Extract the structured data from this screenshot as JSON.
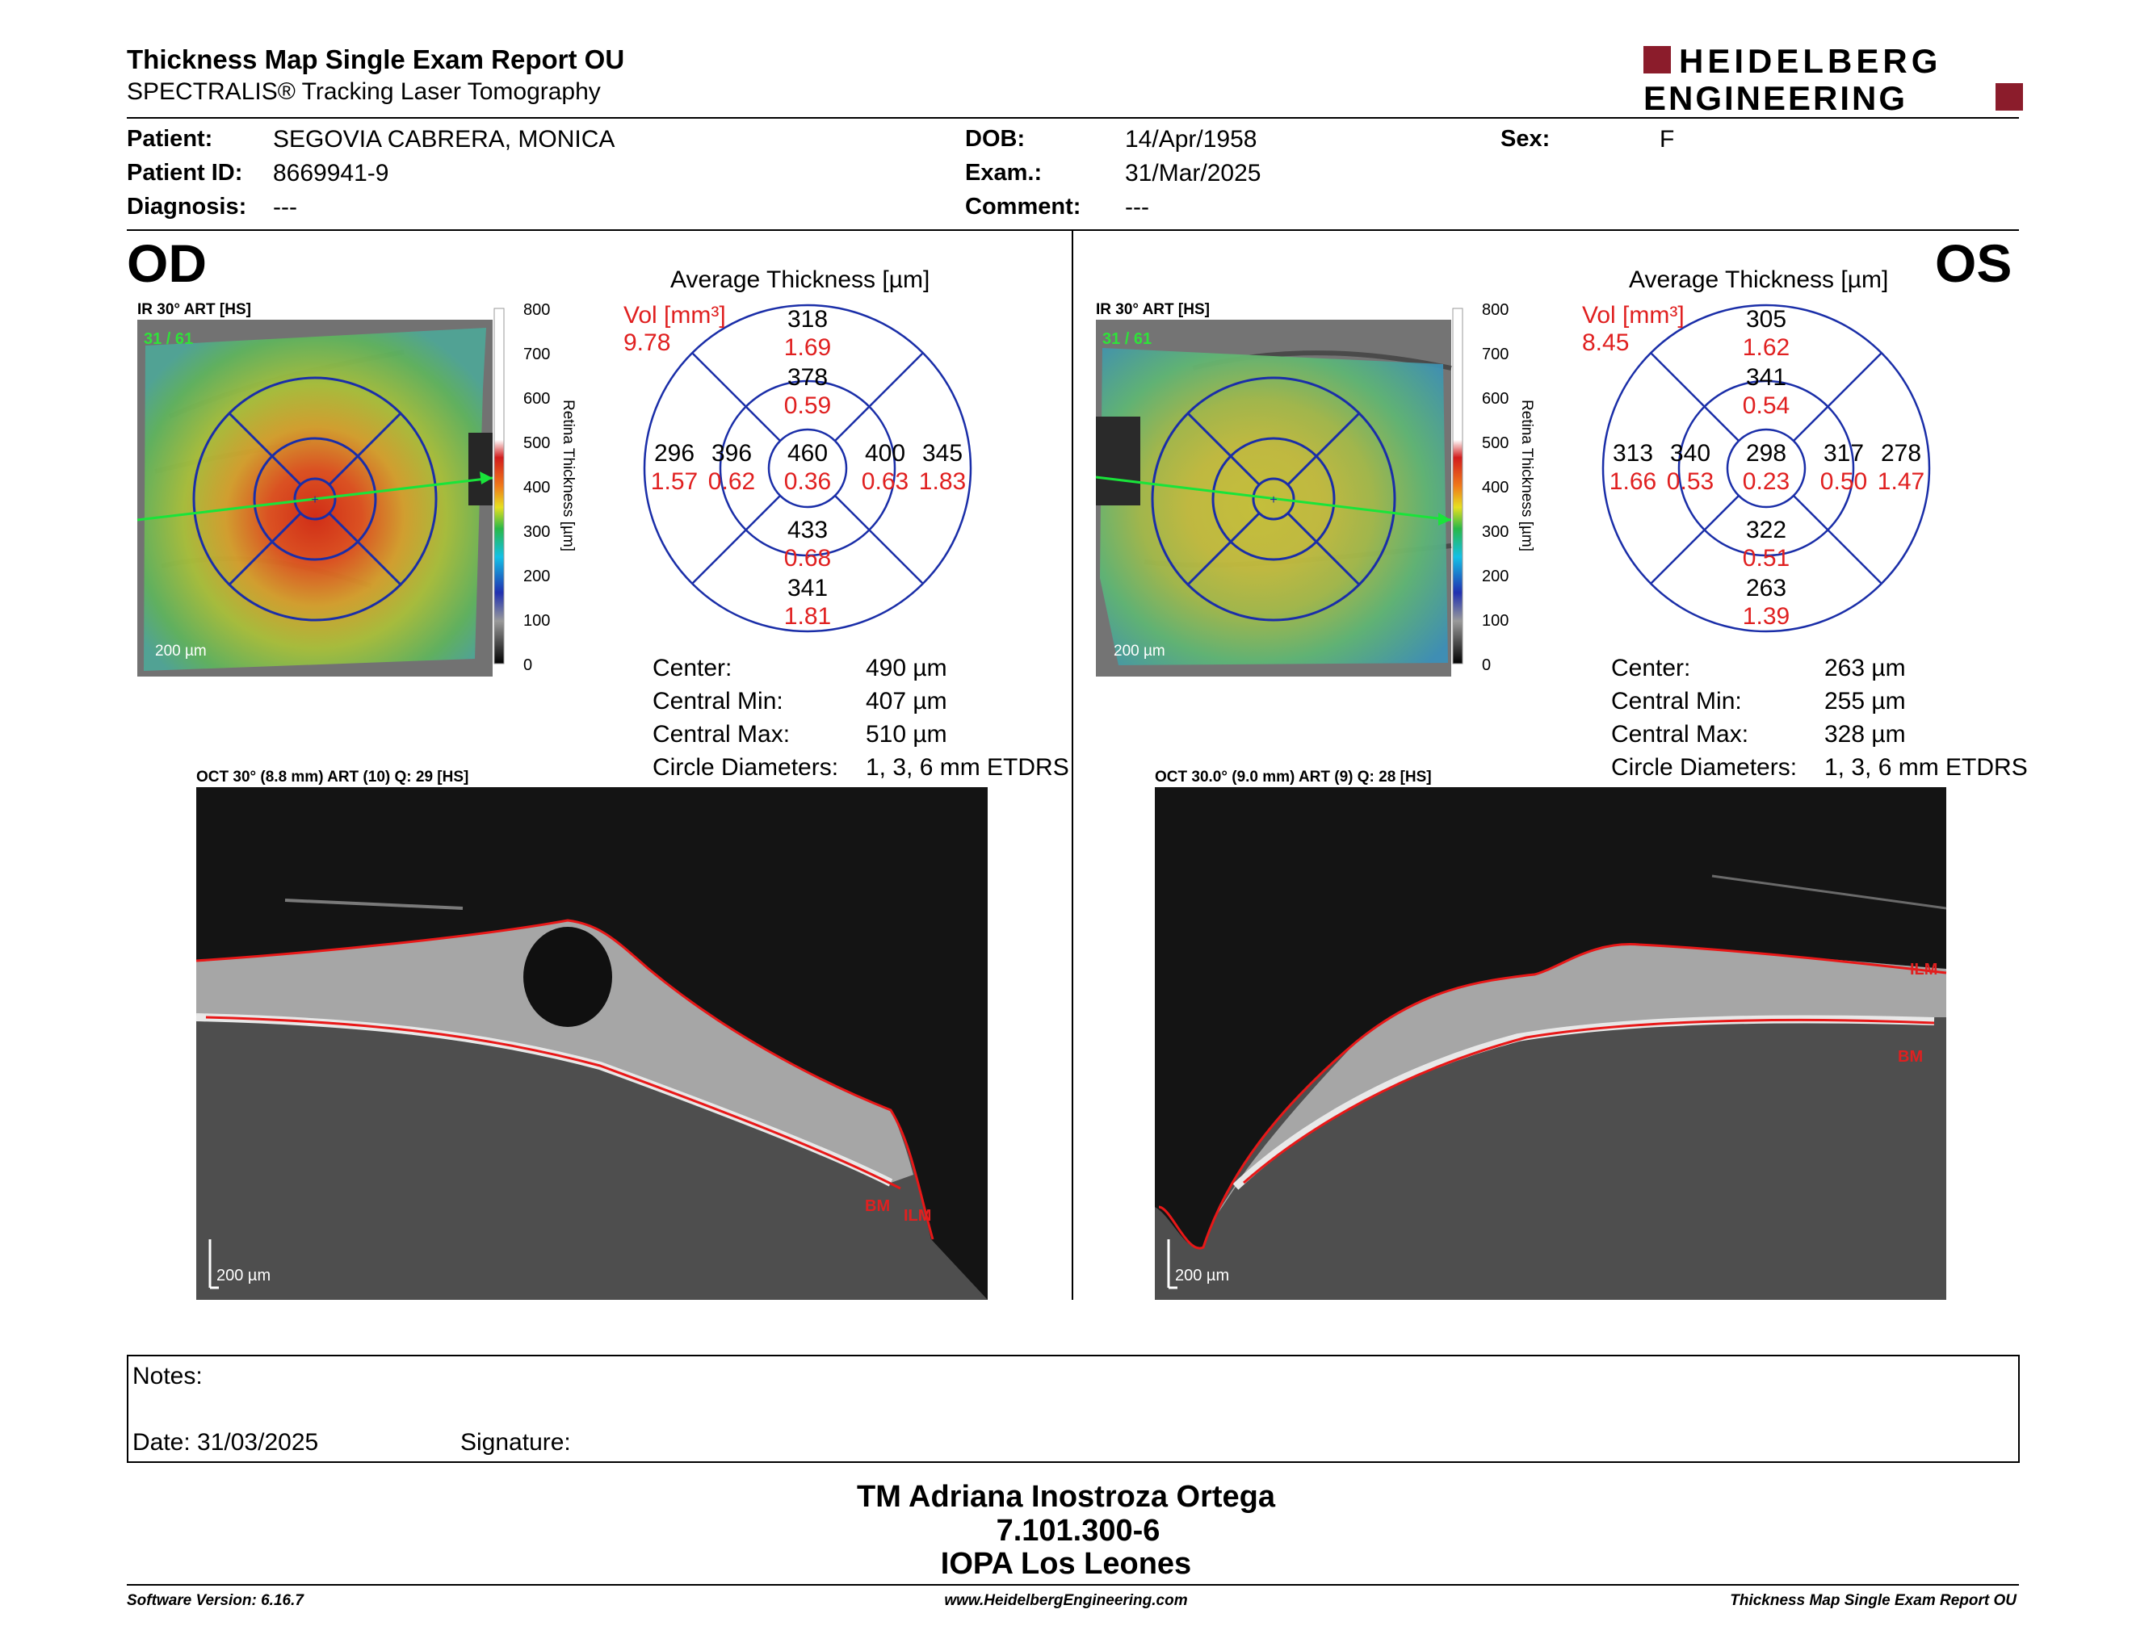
{
  "report": {
    "title": "Thickness Map Single Exam Report OU",
    "subtitle": "SPECTRALIS® Tracking Laser Tomography",
    "logo_line1": "HEIDELBERG",
    "logo_line2": "ENGINEERING",
    "brand_color": "#8b1c2b"
  },
  "patient": {
    "patient_label": "Patient:",
    "patient_value": "SEGOVIA CABRERA, MONICA",
    "id_label": "Patient ID:",
    "id_value": "8669941-9",
    "diagnosis_label": "Diagnosis:",
    "diagnosis_value": "---",
    "dob_label": "DOB:",
    "dob_value": "14/Apr/1958",
    "exam_label": "Exam.:",
    "exam_value": "31/Mar/2025",
    "comment_label": "Comment:",
    "comment_value": "---",
    "sex_label": "Sex:",
    "sex_value": "F"
  },
  "colorbar": {
    "ticks": [
      "800",
      "700",
      "600",
      "500",
      "400",
      "300",
      "200",
      "100",
      "0"
    ],
    "axis_label": "Retina Thickness [µm]"
  },
  "od": {
    "eye": "OD",
    "ir_label": "IR 30° ART [HS]",
    "ir_frames": "31 / 61",
    "ir_scale": "200 µm",
    "etdrs_title": "Average Thickness [µm]",
    "vol_label": "Vol [mm³]",
    "vol_value": "9.78",
    "sectors": {
      "outer_sup": {
        "t": "318",
        "v": "1.69"
      },
      "inner_sup": {
        "t": "378",
        "v": "0.59"
      },
      "outer_nas_left": {
        "t": "296",
        "v": "1.57"
      },
      "inner_left": {
        "t": "396",
        "v": "0.62"
      },
      "center": {
        "t": "460",
        "v": "0.36"
      },
      "inner_right": {
        "t": "400",
        "v": "0.63"
      },
      "outer_right": {
        "t": "345",
        "v": "1.83"
      },
      "inner_inf": {
        "t": "433",
        "v": "0.68"
      },
      "outer_inf": {
        "t": "341",
        "v": "1.81"
      }
    },
    "stats": {
      "center_label": "Center:",
      "center_value": "490 µm",
      "min_label": "Central Min:",
      "min_value": "407 µm",
      "max_label": "Central Max:",
      "max_value": "510 µm",
      "diam_label": "Circle Diameters:",
      "diam_value": "1, 3, 6 mm ETDRS"
    },
    "oct_label": "OCT 30° (8.8 mm) ART (10) Q: 29 [HS]",
    "oct_scale": "200 µm",
    "ilm": "ILM",
    "bm": "BM"
  },
  "os": {
    "eye": "OS",
    "ir_label": "IR 30° ART [HS]",
    "ir_frames": "31 / 61",
    "ir_scale": "200 µm",
    "etdrs_title": "Average Thickness [µm]",
    "vol_label": "Vol [mm³]",
    "vol_value": "8.45",
    "sectors": {
      "outer_sup": {
        "t": "305",
        "v": "1.62"
      },
      "inner_sup": {
        "t": "341",
        "v": "0.54"
      },
      "outer_nas_left": {
        "t": "313",
        "v": "1.66"
      },
      "inner_left": {
        "t": "340",
        "v": "0.53"
      },
      "center": {
        "t": "298",
        "v": "0.23"
      },
      "inner_right": {
        "t": "317",
        "v": "0.50"
      },
      "outer_right": {
        "t": "278",
        "v": "1.47"
      },
      "inner_inf": {
        "t": "322",
        "v": "0.51"
      },
      "outer_inf": {
        "t": "263",
        "v": "1.39"
      }
    },
    "stats": {
      "center_label": "Center:",
      "center_value": "263 µm",
      "min_label": "Central Min:",
      "min_value": "255 µm",
      "max_label": "Central Max:",
      "max_value": "328 µm",
      "diam_label": "Circle Diameters:",
      "diam_value": "1, 3, 6 mm ETDRS"
    },
    "oct_label": "OCT 30.0° (9.0 mm) ART (9) Q: 28 [HS]",
    "oct_scale": "200 µm",
    "ilm": "ILM",
    "bm": "BM"
  },
  "notes": {
    "notes_label": "Notes:",
    "date_label": "Date: 31/03/2025",
    "signature_label": "Signature:"
  },
  "signer": {
    "name": "TM Adriana Inostroza Ortega",
    "rut": "7.101.300-6",
    "clinic": "IOPA Los Leones"
  },
  "footer": {
    "version": "Software Version: 6.16.7",
    "url": "www.HeidelbergEngineering.com",
    "report": "Thickness Map Single Exam Report OU"
  }
}
